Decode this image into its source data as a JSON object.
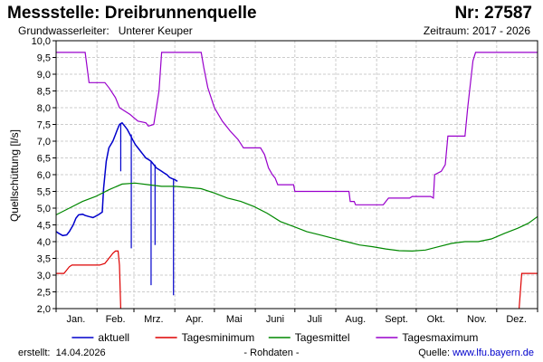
{
  "header": {
    "title": "Messstelle: Dreibrunnenquelle",
    "station_number": "Nr: 27587",
    "aquifer_label": "Grundwasserleiter:",
    "aquifer_value": "Unterer Keuper",
    "period_label": "Zeitraum:",
    "period_value": "2017 - 2026"
  },
  "footer": {
    "created_label": "erstellt:",
    "created_date": "14.04.2026",
    "note": "- Rohdaten -",
    "source_label": "Quelle:",
    "source_link": "www.lfu.bayern.de"
  },
  "colors": {
    "aktuell": "#0000cc",
    "tagesminimum": "#dd0000",
    "tagesmittel": "#008800",
    "tagesmaximum": "#9900cc",
    "grid": "#cccccc"
  },
  "chart_data": {
    "type": "line",
    "title": "",
    "xlabel": "",
    "ylabel": "Quellschüttung [l/s]",
    "ylim": [
      2.0,
      10.0
    ],
    "y_ticks": [
      "2,0",
      "2,5",
      "3,0",
      "3,5",
      "4,0",
      "4,5",
      "5,0",
      "5,5",
      "6,0",
      "6,5",
      "7,0",
      "7,5",
      "8,0",
      "8,5",
      "9,0",
      "9,5",
      "10,0"
    ],
    "xlim": [
      0,
      365
    ],
    "x_ticks": [
      {
        "label": "Jan.",
        "day": 15
      },
      {
        "label": "Feb.",
        "day": 45
      },
      {
        "label": "Mrz.",
        "day": 74
      },
      {
        "label": "Apr.",
        "day": 105
      },
      {
        "label": "Mai",
        "day": 135
      },
      {
        "label": "Juni",
        "day": 166
      },
      {
        "label": "Juli",
        "day": 196
      },
      {
        "label": "Aug.",
        "day": 227
      },
      {
        "label": "Sept.",
        "day": 258
      },
      {
        "label": "Okt.",
        "day": 288
      },
      {
        "label": "Nov.",
        "day": 319
      },
      {
        "label": "Dez.",
        "day": 349
      }
    ],
    "grid": true,
    "legend_position": "bottom",
    "series": [
      {
        "name": "aktuell",
        "color_key": "aktuell",
        "points": [
          [
            0,
            4.3
          ],
          [
            2,
            4.25
          ],
          [
            5,
            4.18
          ],
          [
            8,
            4.2
          ],
          [
            10,
            4.3
          ],
          [
            13,
            4.5
          ],
          [
            15,
            4.7
          ],
          [
            17,
            4.8
          ],
          [
            20,
            4.82
          ],
          [
            22,
            4.78
          ],
          [
            25,
            4.75
          ],
          [
            28,
            4.72
          ],
          [
            32,
            4.8
          ],
          [
            35,
            4.88
          ],
          [
            36,
            5.6
          ],
          [
            38,
            6.4
          ],
          [
            40,
            6.8
          ],
          [
            43,
            7.0
          ],
          [
            45,
            7.2
          ],
          [
            46,
            7.3
          ],
          [
            48,
            7.5
          ],
          [
            50,
            7.55
          ],
          [
            52,
            7.45
          ],
          [
            54,
            7.35
          ],
          [
            56,
            7.2
          ],
          [
            58,
            7.05
          ],
          [
            60,
            6.9
          ],
          [
            62,
            6.8
          ],
          [
            64,
            6.7
          ],
          [
            66,
            6.6
          ],
          [
            68,
            6.5
          ],
          [
            70,
            6.45
          ],
          [
            72,
            6.4
          ],
          [
            74,
            6.3
          ],
          [
            76,
            6.2
          ],
          [
            78,
            6.15
          ],
          [
            80,
            6.1
          ],
          [
            82,
            6.05
          ],
          [
            84,
            6.0
          ],
          [
            86,
            5.92
          ],
          [
            88,
            5.88
          ],
          [
            90,
            5.85
          ],
          [
            92,
            5.8
          ]
        ],
        "spikes": [
          [
            49,
            6.1
          ],
          [
            57,
            3.8
          ],
          [
            72,
            2.7
          ],
          [
            75,
            3.9
          ],
          [
            89,
            2.4
          ]
        ]
      },
      {
        "name": "Tagesminimum",
        "color_key": "tagesminimum",
        "segments": [
          [
            [
              0,
              3.05
            ],
            [
              6,
              3.05
            ],
            [
              10,
              3.25
            ],
            [
              12,
              3.3
            ],
            [
              33,
              3.3
            ],
            [
              37,
              3.35
            ],
            [
              40,
              3.5
            ],
            [
              43,
              3.65
            ],
            [
              45,
              3.72
            ],
            [
              47,
              3.72
            ],
            [
              48,
              3.3
            ],
            [
              49,
              2.0
            ]
          ],
          [
            [
              351,
              2.0
            ],
            [
              353,
              3.05
            ],
            [
              365,
              3.05
            ]
          ]
        ]
      },
      {
        "name": "Tagesmittel",
        "color_key": "tagesmittel",
        "points": [
          [
            0,
            4.8
          ],
          [
            10,
            5.0
          ],
          [
            20,
            5.2
          ],
          [
            30,
            5.35
          ],
          [
            40,
            5.55
          ],
          [
            50,
            5.72
          ],
          [
            60,
            5.75
          ],
          [
            70,
            5.7
          ],
          [
            80,
            5.65
          ],
          [
            90,
            5.65
          ],
          [
            100,
            5.62
          ],
          [
            110,
            5.58
          ],
          [
            120,
            5.45
          ],
          [
            130,
            5.3
          ],
          [
            140,
            5.2
          ],
          [
            150,
            5.05
          ],
          [
            160,
            4.85
          ],
          [
            170,
            4.6
          ],
          [
            180,
            4.45
          ],
          [
            190,
            4.3
          ],
          [
            200,
            4.2
          ],
          [
            210,
            4.1
          ],
          [
            220,
            4.0
          ],
          [
            230,
            3.9
          ],
          [
            240,
            3.85
          ],
          [
            250,
            3.78
          ],
          [
            260,
            3.73
          ],
          [
            270,
            3.72
          ],
          [
            280,
            3.75
          ],
          [
            290,
            3.85
          ],
          [
            300,
            3.95
          ],
          [
            310,
            4.0
          ],
          [
            320,
            4.0
          ],
          [
            330,
            4.08
          ],
          [
            340,
            4.25
          ],
          [
            350,
            4.4
          ],
          [
            358,
            4.55
          ],
          [
            365,
            4.75
          ]
        ]
      },
      {
        "name": "Tagesmaximum",
        "color_key": "tagesmaximum",
        "points": [
          [
            0,
            9.65
          ],
          [
            22,
            9.65
          ],
          [
            25,
            8.75
          ],
          [
            37,
            8.75
          ],
          [
            40,
            8.6
          ],
          [
            45,
            8.3
          ],
          [
            48,
            8.0
          ],
          [
            56,
            7.8
          ],
          [
            62,
            7.6
          ],
          [
            68,
            7.55
          ],
          [
            70,
            7.45
          ],
          [
            74,
            7.5
          ],
          [
            78,
            8.5
          ],
          [
            80,
            9.65
          ],
          [
            110,
            9.65
          ],
          [
            112,
            9.2
          ],
          [
            115,
            8.6
          ],
          [
            120,
            8.0
          ],
          [
            126,
            7.6
          ],
          [
            132,
            7.3
          ],
          [
            138,
            7.05
          ],
          [
            142,
            6.8
          ],
          [
            155,
            6.8
          ],
          [
            158,
            6.6
          ],
          [
            161,
            6.2
          ],
          [
            164,
            6.0
          ],
          [
            166,
            5.9
          ],
          [
            168,
            5.7
          ],
          [
            180,
            5.7
          ],
          [
            181,
            5.5
          ],
          [
            222,
            5.5
          ],
          [
            223,
            5.2
          ],
          [
            226,
            5.2
          ],
          [
            227,
            5.1
          ],
          [
            248,
            5.1
          ],
          [
            252,
            5.3
          ],
          [
            268,
            5.3
          ],
          [
            270,
            5.35
          ],
          [
            284,
            5.35
          ],
          [
            286,
            5.3
          ],
          [
            287,
            6.0
          ],
          [
            292,
            6.1
          ],
          [
            295,
            6.3
          ],
          [
            297,
            7.15
          ],
          [
            310,
            7.15
          ],
          [
            312,
            8.0
          ],
          [
            316,
            9.4
          ],
          [
            318,
            9.65
          ],
          [
            365,
            9.65
          ]
        ]
      }
    ]
  }
}
